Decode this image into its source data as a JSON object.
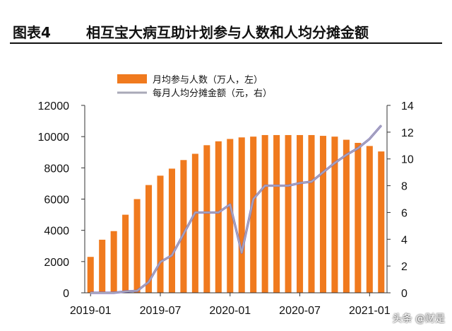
{
  "figure": {
    "label": "图表4",
    "title": "相互宝大病互助计划参与人数和人均分摊金额"
  },
  "watermark": "头条 @财是",
  "colors": {
    "bar": "#F07A1E",
    "line": "#A9A9B8",
    "line_outline": "#7B6BC8",
    "axis": "#333333",
    "text": "#111111"
  },
  "chart_data": {
    "type": "bar",
    "categories": [
      "2019-01",
      "2019-02",
      "2019-03",
      "2019-04",
      "2019-05",
      "2019-06",
      "2019-07",
      "2019-08",
      "2019-09",
      "2019-10",
      "2019-11",
      "2019-12",
      "2020-01",
      "2020-02",
      "2020-03",
      "2020-04",
      "2020-05",
      "2020-06",
      "2020-07",
      "2020-08",
      "2020-09",
      "2020-10",
      "2020-11",
      "2020-12",
      "2021-01",
      "2021-02"
    ],
    "x_tick_labels": [
      "2019-01",
      "2019-07",
      "2020-01",
      "2020-07",
      "2021-01"
    ],
    "series": [
      {
        "name": "月均参与人数（万人，左）",
        "type": "bar",
        "axis": "left",
        "values": [
          2300,
          3400,
          3950,
          5000,
          6000,
          6900,
          7500,
          7950,
          8500,
          8900,
          9450,
          9700,
          9850,
          9950,
          10000,
          10100,
          10100,
          10100,
          10100,
          10100,
          10050,
          10000,
          9800,
          9600,
          9400,
          9050
        ]
      },
      {
        "name": "每月人均分摊金额（元，右）",
        "type": "line",
        "axis": "right",
        "values": [
          0.0,
          0.0,
          0.0,
          0.1,
          0.15,
          0.8,
          2.3,
          2.8,
          4.4,
          6.0,
          6.0,
          6.0,
          6.6,
          3.0,
          7.0,
          8.0,
          8.0,
          8.0,
          8.2,
          8.3,
          9.0,
          9.7,
          10.3,
          10.8,
          11.5,
          12.5
        ]
      }
    ],
    "yleft": {
      "ticks": [
        0,
        2000,
        4000,
        6000,
        8000,
        10000,
        12000
      ],
      "ylim": [
        0,
        12000
      ]
    },
    "yright": {
      "ticks": [
        0,
        2,
        4,
        6,
        8,
        10,
        12,
        14
      ],
      "ylim": [
        0,
        14
      ]
    },
    "legend_position": "top-center",
    "grid": false
  }
}
